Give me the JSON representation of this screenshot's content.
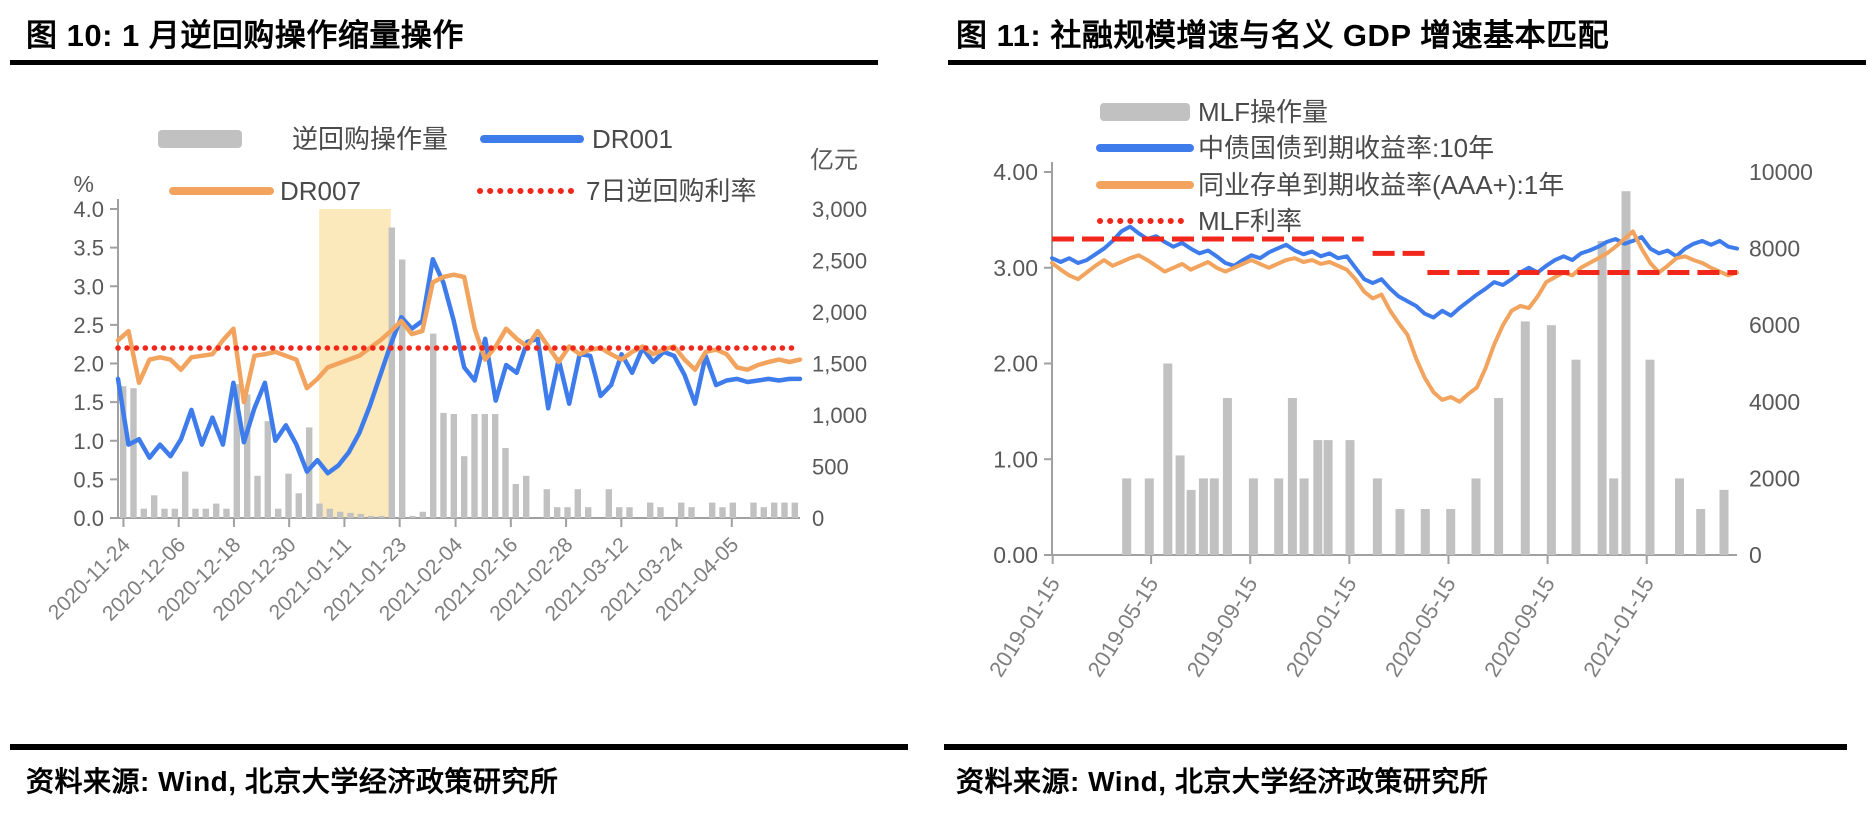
{
  "page": {
    "background": "#ffffff"
  },
  "colors": {
    "dr001_blue": "#3E7CEC",
    "dr007_orange": "#F2A45E",
    "policy_red": "#F2271C",
    "bar_gray": "#C1C1C1",
    "band_yellow": "#FBE9BC",
    "axis_text": "#595959",
    "date_text": "#7F7F7F",
    "rule_black": "#000000"
  },
  "chart_data": [
    {
      "type": "bar+line",
      "title": "图 10: 1 月逆回购操作缩量操作",
      "source": "资料来源: Wind, 北京大学经济政策研究所",
      "y_left": {
        "unit": "%",
        "min": 0,
        "max": 4,
        "tick_labels": [
          "4.0",
          "3.5",
          "3.0",
          "2.5",
          "2.0",
          "1.5",
          "1.0",
          "0.5",
          "0.0"
        ]
      },
      "y_right": {
        "unit": "亿元",
        "min": 0,
        "max": 3000,
        "tick_labels": [
          "3,000",
          "2,500",
          "2,000",
          "1,500",
          "1,000",
          "500",
          "0"
        ]
      },
      "x_ticks": {
        "fractions": [
          0.008,
          0.089,
          0.17,
          0.251,
          0.332,
          0.413,
          0.495,
          0.576,
          0.657,
          0.738,
          0.819,
          0.9
        ],
        "labels": [
          "2020-11-24",
          "2020-12-06",
          "2020-12-18",
          "2020-12-30",
          "2021-01-11",
          "2021-01-23",
          "2021-02-04",
          "2021-02-16",
          "2021-02-28",
          "2021-03-12",
          "2021-03-24",
          "2021-04-05"
        ]
      },
      "band": {
        "from_frac": 0.295,
        "to_frac": 0.4,
        "color": "#FBE9BC"
      },
      "legend": [
        {
          "label": "逆回购操作量",
          "swatch": "bar",
          "color": "#C1C1C1"
        },
        {
          "label": "DR001",
          "swatch": "line",
          "color": "#3E7CEC"
        },
        {
          "label": "DR007",
          "swatch": "line",
          "color": "#F2A45E"
        },
        {
          "label": "7日逆回购利率",
          "swatch": "dots",
          "color": "#F2271C"
        }
      ],
      "series": [
        {
          "name": "逆回购操作量",
          "kind": "bar",
          "axis": "right",
          "color": "#C1C1C1",
          "values": [
            1280,
            1260,
            90,
            220,
            90,
            90,
            450,
            90,
            90,
            140,
            90,
            1300,
            1200,
            410,
            940,
            90,
            430,
            240,
            880,
            140,
            90,
            60,
            50,
            40,
            20,
            20,
            2820,
            2510,
            20,
            60,
            1790,
            1020,
            1010,
            600,
            1010,
            1010,
            1010,
            680,
            330,
            410,
            0,
            280,
            105,
            105,
            280,
            105,
            0,
            280,
            105,
            105,
            0,
            150,
            105,
            0,
            150,
            105,
            0,
            150,
            105,
            150,
            0,
            150,
            105,
            150,
            150,
            150
          ]
        },
        {
          "name": "DR001",
          "kind": "line",
          "axis": "left",
          "color": "#3E7CEC",
          "values": [
            1.8,
            0.95,
            1.02,
            0.78,
            0.95,
            0.8,
            1.02,
            1.4,
            0.95,
            1.3,
            0.95,
            1.75,
            0.98,
            1.42,
            1.75,
            1.0,
            1.2,
            0.95,
            0.6,
            0.75,
            0.58,
            0.68,
            0.85,
            1.1,
            1.45,
            1.85,
            2.25,
            2.6,
            2.45,
            2.55,
            3.35,
            3.05,
            2.55,
            1.95,
            1.78,
            2.32,
            1.52,
            1.98,
            1.88,
            2.28,
            2.32,
            1.42,
            2.05,
            1.48,
            2.12,
            2.1,
            1.58,
            1.72,
            2.12,
            1.88,
            2.2,
            2.02,
            2.15,
            2.1,
            1.85,
            1.48,
            2.1,
            1.72,
            1.78,
            1.8,
            1.76,
            1.78,
            1.8,
            1.78,
            1.8,
            1.8
          ]
        },
        {
          "name": "DR007",
          "kind": "line",
          "axis": "left",
          "color": "#F2A45E",
          "values": [
            2.3,
            2.42,
            1.75,
            2.05,
            2.08,
            2.05,
            1.92,
            2.08,
            2.1,
            2.12,
            2.3,
            2.45,
            1.5,
            2.1,
            2.12,
            2.15,
            2.1,
            2.05,
            1.68,
            1.8,
            1.95,
            2.0,
            2.05,
            2.1,
            2.2,
            2.3,
            2.42,
            2.55,
            2.38,
            2.42,
            3.05,
            3.12,
            3.15,
            3.12,
            2.45,
            2.05,
            2.22,
            2.45,
            2.32,
            2.22,
            2.42,
            2.22,
            2.02,
            2.22,
            2.12,
            2.18,
            2.2,
            2.12,
            2.05,
            2.15,
            2.22,
            2.12,
            2.18,
            2.22,
            2.05,
            1.92,
            2.15,
            2.18,
            2.12,
            1.95,
            1.92,
            1.98,
            2.02,
            2.05,
            2.02,
            2.05
          ]
        },
        {
          "name": "7日逆回购利率",
          "kind": "dotted-line",
          "axis": "left",
          "color": "#F2271C",
          "segments": [
            [
              0.0,
              1.0,
              2.2
            ]
          ]
        }
      ]
    },
    {
      "type": "bar+line",
      "title": "图 11: 社融规模增速与名义 GDP 增速基本匹配",
      "source": "资料来源: Wind, 北京大学经济政策研究所",
      "y_left": {
        "unit": "",
        "min": 0,
        "max": 4,
        "tick_labels": [
          "4.00",
          "3.00",
          "2.00",
          "1.00",
          "0.00"
        ]
      },
      "y_right": {
        "unit": "",
        "min": 0,
        "max": 10000,
        "tick_labels": [
          "10000",
          "8000",
          "6000",
          "4000",
          "2000",
          "0"
        ]
      },
      "x_ticks": {
        "fractions": [
          0.001,
          0.1447,
          0.2894,
          0.4341,
          0.5788,
          0.7235,
          0.8682
        ],
        "labels": [
          "2019-01-15",
          "2019-05-15",
          "2019-09-15",
          "2020-01-15",
          "2020-05-15",
          "2020-09-15",
          "2021-01-15"
        ]
      },
      "band": null,
      "legend": [
        {
          "label": "MLF操作量",
          "swatch": "bar",
          "color": "#C1C1C1"
        },
        {
          "label": "中债国债到期收益率:10年",
          "swatch": "line",
          "color": "#3E7CEC"
        },
        {
          "label": "同业存单到期收益率(AAA+):1年",
          "swatch": "line",
          "color": "#F2A45E"
        },
        {
          "label": "MLF利率",
          "swatch": "dots",
          "color": "#F2271C"
        }
      ],
      "series": [
        {
          "name": "MLF操作量",
          "kind": "bar",
          "axis": "right",
          "color": "#C1C1C1",
          "points": [
            [
              0.109,
              2000
            ],
            [
              0.142,
              2000
            ],
            [
              0.169,
              5000
            ],
            [
              0.187,
              2600
            ],
            [
              0.203,
              1700
            ],
            [
              0.221,
              2000
            ],
            [
              0.237,
              2000
            ],
            [
              0.256,
              4100
            ],
            [
              0.294,
              2000
            ],
            [
              0.331,
              2000
            ],
            [
              0.351,
              4100
            ],
            [
              0.368,
              2000
            ],
            [
              0.388,
              3000
            ],
            [
              0.403,
              3000
            ],
            [
              0.435,
              3000
            ],
            [
              0.475,
              2000
            ],
            [
              0.508,
              1200
            ],
            [
              0.545,
              1200
            ],
            [
              0.582,
              1200
            ],
            [
              0.619,
              2000
            ],
            [
              0.652,
              4100
            ],
            [
              0.691,
              6100
            ],
            [
              0.729,
              6000
            ],
            [
              0.765,
              5100
            ],
            [
              0.803,
              8200
            ],
            [
              0.82,
              2000
            ],
            [
              0.838,
              9500
            ],
            [
              0.873,
              5100
            ],
            [
              0.916,
              2000
            ],
            [
              0.947,
              1200
            ],
            [
              0.981,
              1700
            ]
          ]
        },
        {
          "name": "中债国债到期收益率:10年",
          "kind": "line",
          "axis": "left",
          "color": "#3E7CEC",
          "values": [
            3.1,
            3.06,
            3.1,
            3.05,
            3.08,
            3.14,
            3.2,
            3.28,
            3.38,
            3.43,
            3.36,
            3.3,
            3.33,
            3.27,
            3.22,
            3.26,
            3.2,
            3.15,
            3.18,
            3.12,
            3.05,
            3.02,
            3.08,
            3.13,
            3.1,
            3.16,
            3.2,
            3.24,
            3.18,
            3.14,
            3.17,
            3.12,
            3.15,
            3.1,
            3.12,
            3.0,
            2.88,
            2.84,
            2.88,
            2.78,
            2.7,
            2.65,
            2.6,
            2.52,
            2.48,
            2.55,
            2.5,
            2.58,
            2.65,
            2.72,
            2.78,
            2.85,
            2.82,
            2.88,
            2.95,
            3.0,
            2.95,
            3.02,
            3.08,
            3.12,
            3.08,
            3.15,
            3.18,
            3.22,
            3.27,
            3.3,
            3.25,
            3.28,
            3.32,
            3.2,
            3.15,
            3.18,
            3.12,
            3.2,
            3.25,
            3.28,
            3.24,
            3.28,
            3.22,
            3.2
          ]
        },
        {
          "name": "同业存单到期收益率(AAA+):1年",
          "kind": "line",
          "axis": "left",
          "color": "#F2A45E",
          "values": [
            3.05,
            2.98,
            2.92,
            2.88,
            2.95,
            3.02,
            3.08,
            3.02,
            3.06,
            3.1,
            3.13,
            3.08,
            3.02,
            2.96,
            3.0,
            3.04,
            2.98,
            3.02,
            3.06,
            3.0,
            2.96,
            3.0,
            3.04,
            3.08,
            3.04,
            3.0,
            3.04,
            3.08,
            3.1,
            3.06,
            3.08,
            3.04,
            3.06,
            3.02,
            2.98,
            2.88,
            2.75,
            2.68,
            2.72,
            2.55,
            2.42,
            2.3,
            2.05,
            1.85,
            1.7,
            1.62,
            1.65,
            1.6,
            1.68,
            1.75,
            1.95,
            2.2,
            2.4,
            2.55,
            2.6,
            2.58,
            2.7,
            2.85,
            2.9,
            2.95,
            2.92,
            3.0,
            3.05,
            3.1,
            3.15,
            3.22,
            3.3,
            3.38,
            3.2,
            3.05,
            2.95,
            3.02,
            3.1,
            3.12,
            3.08,
            3.05,
            3.0,
            2.96,
            2.92,
            2.95
          ]
        },
        {
          "name": "MLF利率",
          "kind": "dashed-line",
          "axis": "left",
          "color": "#F2271C",
          "segments": [
            [
              0.0,
              0.455,
              3.3
            ],
            [
              0.468,
              0.545,
              3.15
            ],
            [
              0.548,
              1.0,
              2.95
            ]
          ]
        }
      ]
    }
  ]
}
